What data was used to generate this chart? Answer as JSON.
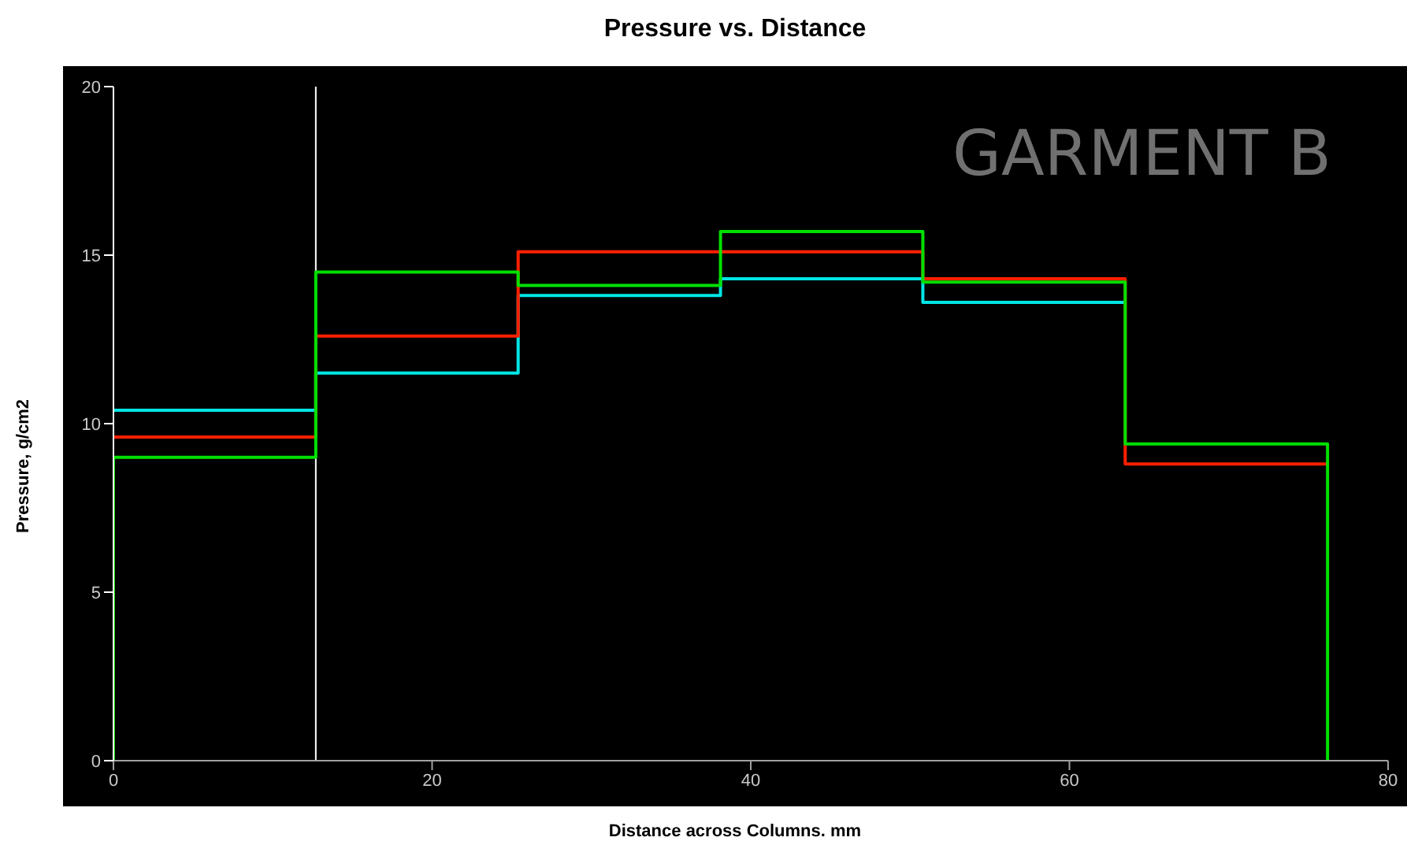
{
  "chart_data": {
    "type": "step",
    "title": "Pressure vs. Distance",
    "xlabel": "Distance across Columns. mm",
    "ylabel": "Pressure, g/cm2",
    "annotations": [
      "GARMENT B"
    ],
    "xlim": [
      0,
      80
    ],
    "xticks": [
      0,
      20,
      40,
      60,
      80
    ],
    "ylim": [
      0,
      20
    ],
    "yticks": [
      0,
      5,
      10,
      15,
      20
    ],
    "ref_lines": [
      {
        "axis": "x",
        "value": 12.7,
        "color": "#ffffff"
      }
    ],
    "series": [
      {
        "color": "#00e5e5",
        "x": [
          0,
          12.7,
          25.4,
          38.1,
          50.8,
          63.5
        ],
        "values": [
          10.4,
          11.5,
          13.8,
          14.3,
          13.6,
          13.6
        ]
      },
      {
        "color": "#ff2000",
        "x": [
          0,
          12.7,
          25.4,
          38.1,
          50.8,
          63.5,
          76.2
        ],
        "values": [
          9.6,
          12.6,
          15.1,
          15.1,
          14.3,
          8.8,
          8.8
        ]
      },
      {
        "color": "#00e000",
        "x": [
          0,
          0,
          12.7,
          25.4,
          38.1,
          50.8,
          63.5,
          76.2,
          76.2
        ],
        "values": [
          0,
          9.0,
          14.5,
          14.1,
          15.7,
          14.2,
          9.4,
          9.4,
          0
        ]
      }
    ]
  }
}
